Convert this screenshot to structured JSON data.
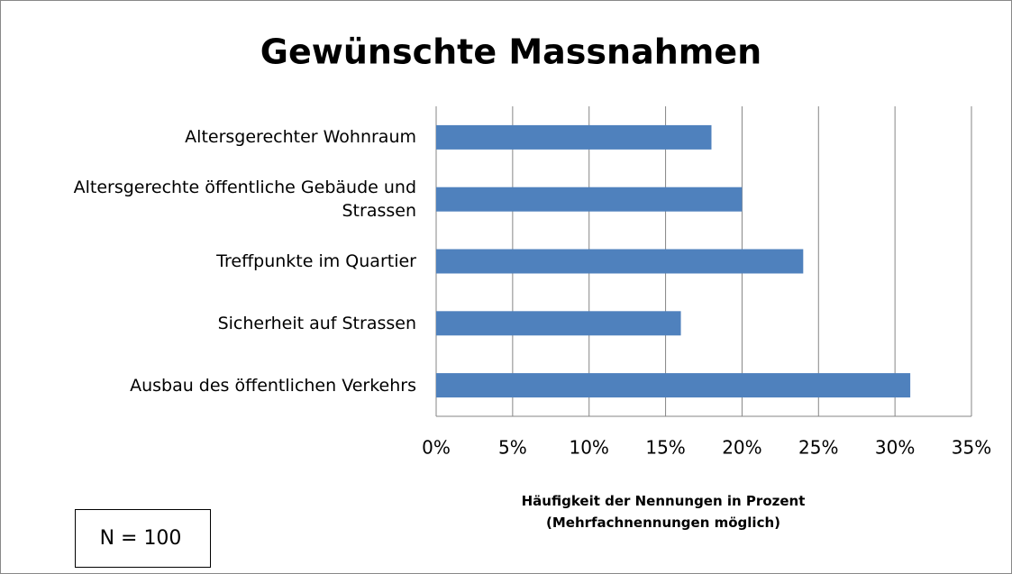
{
  "chart_data": {
    "type": "bar",
    "orientation": "horizontal",
    "title": "Gewünschte Massnahmen",
    "categories": [
      "Altersgerechter Wohnraum",
      "Altersgerechte öffentliche Gebäude und Strassen",
      "Treffpunkte im Quartier",
      "Sicherheit auf Strassen",
      "Ausbau des öffentlichen Verkehrs"
    ],
    "values": [
      18,
      20,
      24,
      16,
      31
    ],
    "color": "#4f81bd",
    "xlim": [
      0,
      35
    ],
    "xticks": [
      {
        "value": 0,
        "label": "0%"
      },
      {
        "value": 5,
        "label": "5%"
      },
      {
        "value": 10,
        "label": "10%"
      },
      {
        "value": 15,
        "label": "15%"
      },
      {
        "value": 20,
        "label": "20%"
      },
      {
        "value": 25,
        "label": "25%"
      },
      {
        "value": 30,
        "label": "30%"
      },
      {
        "value": 35,
        "label": "35%"
      }
    ],
    "x_label": "Häufigkeit der Nennungen in Prozent\n(Mehrfachnennungen möglich)",
    "annotation": "N = 100",
    "grid": true
  }
}
